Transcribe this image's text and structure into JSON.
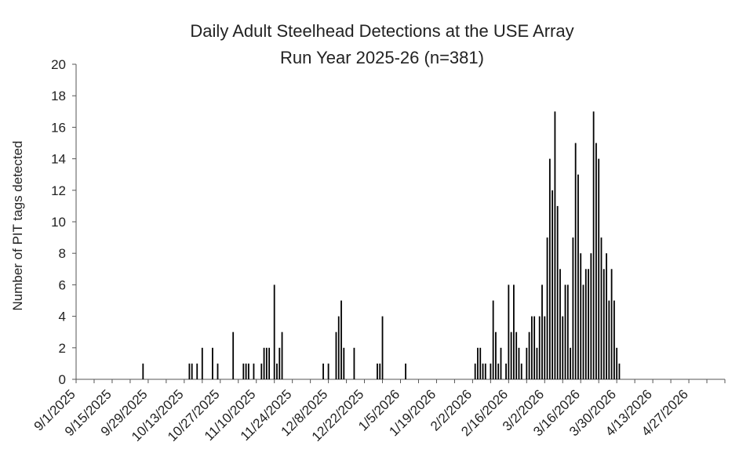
{
  "chart_data": {
    "type": "bar",
    "title": "Daily Adult Steelhead Detections at the USE Array",
    "subtitle": "Run Year 2025-26 (n=381)",
    "xlabel": "",
    "ylabel": "Number of PIT tags detected",
    "ylim": [
      0,
      20
    ],
    "yticks": [
      0,
      2,
      4,
      6,
      8,
      10,
      12,
      14,
      16,
      18,
      20
    ],
    "xlim": [
      "2025-09-01",
      "2026-05-11"
    ],
    "xtick_labels": [
      "9/1/2025",
      "9/15/2025",
      "9/29/2025",
      "10/13/2025",
      "10/27/2025",
      "11/10/2025",
      "11/24/2025",
      "12/8/2025",
      "12/22/2025",
      "1/5/2026",
      "1/19/2026",
      "2/2/2026",
      "2/16/2026",
      "3/2/2026",
      "3/16/2026",
      "3/30/2026",
      "4/13/2026",
      "4/27/2026"
    ],
    "series": [
      {
        "name": "PIT tags detected",
        "color": "#000000",
        "points": [
          [
            "2025-09-27",
            1
          ],
          [
            "2025-10-15",
            1
          ],
          [
            "2025-10-16",
            1
          ],
          [
            "2025-10-18",
            1
          ],
          [
            "2025-10-20",
            2
          ],
          [
            "2025-10-24",
            2
          ],
          [
            "2025-10-26",
            1
          ],
          [
            "2025-11-01",
            3
          ],
          [
            "2025-11-05",
            1
          ],
          [
            "2025-11-06",
            1
          ],
          [
            "2025-11-07",
            1
          ],
          [
            "2025-11-09",
            1
          ],
          [
            "2025-11-12",
            1
          ],
          [
            "2025-11-13",
            2
          ],
          [
            "2025-11-14",
            2
          ],
          [
            "2025-11-15",
            2
          ],
          [
            "2025-11-17",
            6
          ],
          [
            "2025-11-18",
            1
          ],
          [
            "2025-11-19",
            2
          ],
          [
            "2025-11-20",
            3
          ],
          [
            "2025-12-06",
            1
          ],
          [
            "2025-12-08",
            1
          ],
          [
            "2025-12-11",
            3
          ],
          [
            "2025-12-12",
            4
          ],
          [
            "2025-12-13",
            5
          ],
          [
            "2025-12-14",
            2
          ],
          [
            "2025-12-18",
            2
          ],
          [
            "2025-12-27",
            1
          ],
          [
            "2025-12-28",
            1
          ],
          [
            "2025-12-29",
            4
          ],
          [
            "2026-01-07",
            1
          ],
          [
            "2026-02-03",
            1
          ],
          [
            "2026-02-04",
            2
          ],
          [
            "2026-02-05",
            2
          ],
          [
            "2026-02-06",
            1
          ],
          [
            "2026-02-07",
            1
          ],
          [
            "2026-02-09",
            1
          ],
          [
            "2026-02-10",
            5
          ],
          [
            "2026-02-11",
            3
          ],
          [
            "2026-02-12",
            1
          ],
          [
            "2026-02-13",
            2
          ],
          [
            "2026-02-15",
            1
          ],
          [
            "2026-02-16",
            6
          ],
          [
            "2026-02-17",
            3
          ],
          [
            "2026-02-18",
            6
          ],
          [
            "2026-02-19",
            3
          ],
          [
            "2026-02-20",
            2
          ],
          [
            "2026-02-21",
            1
          ],
          [
            "2026-02-23",
            2
          ],
          [
            "2026-02-24",
            3
          ],
          [
            "2026-02-25",
            4
          ],
          [
            "2026-02-26",
            4
          ],
          [
            "2026-02-27",
            2
          ],
          [
            "2026-02-28",
            4
          ],
          [
            "2026-03-01",
            6
          ],
          [
            "2026-03-02",
            4
          ],
          [
            "2026-03-03",
            9
          ],
          [
            "2026-03-04",
            14
          ],
          [
            "2026-03-05",
            12
          ],
          [
            "2026-03-06",
            17
          ],
          [
            "2026-03-07",
            11
          ],
          [
            "2026-03-08",
            7
          ],
          [
            "2026-03-09",
            4
          ],
          [
            "2026-03-10",
            6
          ],
          [
            "2026-03-11",
            6
          ],
          [
            "2026-03-12",
            2
          ],
          [
            "2026-03-13",
            9
          ],
          [
            "2026-03-14",
            15
          ],
          [
            "2026-03-15",
            13
          ],
          [
            "2026-03-16",
            8
          ],
          [
            "2026-03-17",
            6
          ],
          [
            "2026-03-18",
            7
          ],
          [
            "2026-03-19",
            7
          ],
          [
            "2026-03-20",
            8
          ],
          [
            "2026-03-21",
            17
          ],
          [
            "2026-03-22",
            15
          ],
          [
            "2026-03-23",
            14
          ],
          [
            "2026-03-24",
            9
          ],
          [
            "2026-03-25",
            7
          ],
          [
            "2026-03-26",
            8
          ],
          [
            "2026-03-27",
            5
          ],
          [
            "2026-03-28",
            7
          ],
          [
            "2026-03-29",
            5
          ],
          [
            "2026-03-30",
            2
          ],
          [
            "2026-03-31",
            1
          ]
        ]
      }
    ],
    "grid": false,
    "legend": "none"
  }
}
